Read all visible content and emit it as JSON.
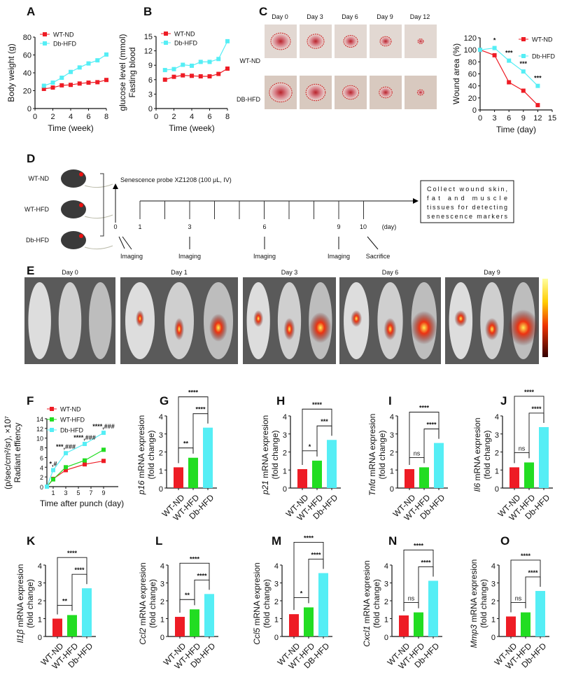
{
  "panel_letters": {
    "A": "A",
    "B": "B",
    "C": "C",
    "D": "D",
    "E": "E",
    "F": "F",
    "G": "G",
    "H": "H",
    "I": "I",
    "J": "J",
    "K": "K",
    "L": "L",
    "M": "M",
    "N": "N",
    "O": "O"
  },
  "colors": {
    "WT-ND": "#ee1c25",
    "WT-HFD": "#22dd22",
    "Db-HFD": "#55eef5"
  },
  "panel_c": {
    "days": [
      "Day 0",
      "Day 3",
      "Day 6",
      "Day 9",
      "Day 12"
    ],
    "rows": [
      "WT-ND",
      "DB-HFD"
    ]
  },
  "panel_d": {
    "groups": [
      "WT-ND",
      "WT-HFD",
      "Db-HFD"
    ],
    "probe": "Senescence probe XZ1208 (100 μL, IV)",
    "days": [
      "0",
      "1",
      "3",
      "6",
      "9",
      "10"
    ],
    "unit": "(day)",
    "events": [
      "Imaging",
      "Imaging",
      "Imaging",
      "Imaging",
      "Sacrifice"
    ],
    "box": [
      "Collect wound skin,",
      "fat and muscle",
      "tissues for detecting",
      "senescence markers"
    ]
  },
  "panel_e": {
    "days": [
      "Day 0",
      "Day 1",
      "Day 3",
      "Day 6",
      "Day 9"
    ]
  },
  "chart_data": [
    {
      "panel": "A",
      "type": "line",
      "xlabel": "Time (week)",
      "ylabel": "Body weight (g)",
      "xlim": [
        0,
        8
      ],
      "ylim": [
        0,
        80
      ],
      "xticks": [
        0,
        2,
        4,
        6,
        8
      ],
      "yticks": [
        0,
        20,
        40,
        60,
        80
      ],
      "legend": "top-left",
      "x": [
        1,
        2,
        3,
        4,
        5,
        6,
        7,
        8
      ],
      "series": [
        {
          "name": "WT-ND",
          "values": [
            22,
            23.5,
            26,
            26.5,
            28,
            29,
            29.5,
            32
          ]
        },
        {
          "name": "Db-HFD",
          "values": [
            25.5,
            29,
            34.5,
            41,
            46,
            50.5,
            54,
            60.5
          ]
        }
      ]
    },
    {
      "panel": "B",
      "type": "line",
      "xlabel": "Time (week)",
      "ylabel": [
        "Fasting blood",
        "glucose level (mmol)"
      ],
      "xlim": [
        0,
        8
      ],
      "ylim": [
        0,
        15
      ],
      "xticks": [
        0,
        2,
        4,
        6,
        8
      ],
      "yticks": [
        0,
        3,
        6,
        9,
        12,
        15
      ],
      "legend": "top-left",
      "x": [
        1,
        2,
        3,
        4,
        5,
        6,
        7,
        8
      ],
      "series": [
        {
          "name": "WT-ND",
          "values": [
            6,
            6.6,
            6.9,
            6.8,
            6.7,
            6.7,
            7.2,
            8.3
          ]
        },
        {
          "name": "Db-HFD",
          "values": [
            8,
            8.2,
            9.1,
            8.9,
            9.7,
            9.7,
            10.3,
            14
          ]
        }
      ]
    },
    {
      "panel": "C",
      "type": "line",
      "xlabel": "Time (day)",
      "ylabel": "Wound area (%)",
      "xlim": [
        0,
        15
      ],
      "ylim": [
        0,
        120
      ],
      "xticks": [
        0,
        3,
        6,
        9,
        12,
        15
      ],
      "yticks": [
        0,
        20,
        40,
        60,
        80,
        100,
        120
      ],
      "legend": "top-right",
      "x": [
        0,
        3,
        6,
        9,
        12
      ],
      "series": [
        {
          "name": "WT-ND",
          "values": [
            100,
            91,
            46,
            32,
            8
          ]
        },
        {
          "name": "Db-HFD",
          "values": [
            100,
            103,
            82,
            64,
            40
          ]
        }
      ],
      "annotations": [
        {
          "x": 3,
          "text": "*"
        },
        {
          "x": 6,
          "text": "***"
        },
        {
          "x": 9,
          "text": "***"
        },
        {
          "x": 12,
          "text": "***"
        }
      ]
    },
    {
      "panel": "F",
      "type": "line",
      "xlabel": "Time after punch (day)",
      "ylabel": [
        "Radiant effiency",
        "(p/sec/cm²/sr), ×10⁷"
      ],
      "xlim": [
        0,
        10
      ],
      "ylim": [
        0,
        14
      ],
      "xticks": [
        1,
        3,
        5,
        7,
        9
      ],
      "yticks": [
        0,
        2,
        4,
        6,
        8,
        10,
        12,
        14
      ],
      "legend": "top-left",
      "x": [
        0,
        1,
        3,
        6,
        9
      ],
      "series": [
        {
          "name": "WT-ND",
          "values": [
            0,
            1.6,
            3.4,
            4.6,
            5.3
          ]
        },
        {
          "name": "WT-HFD",
          "values": [
            0,
            1.5,
            4.0,
            5.4,
            7.6
          ]
        },
        {
          "name": "Db-HFD",
          "values": [
            0,
            3.4,
            6.9,
            8.8,
            11.1
          ]
        }
      ],
      "annotations": [
        {
          "x": 1,
          "text": "*,#"
        },
        {
          "x": 3,
          "text": "***,###"
        },
        {
          "x": 6,
          "text": "****,###"
        },
        {
          "x": 9,
          "text": "****,###"
        }
      ]
    },
    {
      "panel": "G",
      "type": "bar",
      "gene": "p16",
      "ylabel": " mRNA expresion",
      "ylabel2": "(fold change)",
      "categories": [
        "WT-ND",
        "WT-HFD",
        "Db-HFD"
      ],
      "values": [
        1.15,
        1.68,
        3.35
      ],
      "ylim": [
        0,
        4
      ],
      "yticks": [
        0,
        1,
        2,
        3,
        4
      ],
      "sig": [
        "**",
        "****",
        "****"
      ]
    },
    {
      "panel": "H",
      "type": "bar",
      "gene": "p21",
      "ylabel": " mRNA expresion",
      "ylabel2": "(fold change)",
      "categories": [
        "WT-ND",
        "WT-HFD",
        "Db-HFD"
      ],
      "values": [
        1.05,
        1.52,
        2.67
      ],
      "ylim": [
        0,
        4
      ],
      "yticks": [
        0,
        1,
        2,
        3,
        4
      ],
      "sig": [
        "*",
        "****",
        "***"
      ]
    },
    {
      "panel": "I",
      "type": "bar",
      "gene": "Tnfα",
      "ylabel": " mRNA expresion",
      "ylabel2": "(fold change)",
      "categories": [
        "WT-ND",
        "WT-HFD",
        "Db-HFD"
      ],
      "values": [
        1.05,
        1.15,
        2.5
      ],
      "ylim": [
        0,
        4
      ],
      "yticks": [
        0,
        1,
        2,
        3,
        4
      ],
      "sig": [
        "ns",
        "****",
        "****"
      ]
    },
    {
      "panel": "J",
      "type": "bar",
      "gene": "Il6",
      "ylabel": " mRNA expresion",
      "ylabel2": "(fold change)",
      "categories": [
        "WT-ND",
        "WT-HFD",
        "Db-HFD"
      ],
      "values": [
        1.15,
        1.42,
        3.38
      ],
      "ylim": [
        0,
        4
      ],
      "yticks": [
        0,
        1,
        2,
        3,
        4
      ],
      "sig": [
        "ns",
        "****",
        "****"
      ]
    },
    {
      "panel": "K",
      "type": "bar",
      "gene": "Il1β",
      "ylabel": " mRNA expresion",
      "ylabel2": "(fold change)",
      "categories": [
        "WT-ND",
        "WT-HFD",
        "Db-HFD"
      ],
      "values": [
        1.0,
        1.2,
        2.7
      ],
      "ylim": [
        0,
        4
      ],
      "yticks": [
        0,
        1,
        2,
        3,
        4
      ],
      "sig": [
        "**",
        "****",
        "****"
      ]
    },
    {
      "panel": "L",
      "type": "bar",
      "gene": "Ccl2",
      "ylabel": " mRNA expresion",
      "ylabel2": "(fold change)",
      "categories": [
        "WT-ND",
        "WT-HFD",
        "Db-HFD"
      ],
      "values": [
        1.1,
        1.52,
        2.38
      ],
      "ylim": [
        0,
        4
      ],
      "yticks": [
        0,
        1,
        2,
        3,
        4
      ],
      "sig": [
        "**",
        "****",
        "****"
      ]
    },
    {
      "panel": "M",
      "type": "bar",
      "gene": "Ccl5",
      "ylabel": " mRNA expresion",
      "ylabel2": "(fold change)",
      "categories": [
        "WT-ND",
        "WT-HFD",
        "DB-HFD"
      ],
      "values": [
        1.25,
        1.63,
        3.55
      ],
      "ylim": [
        0,
        4
      ],
      "yticks": [
        0,
        1,
        2,
        3,
        4
      ],
      "sig": [
        "*",
        "****",
        "****"
      ]
    },
    {
      "panel": "N",
      "type": "bar",
      "gene": "Cxcl1",
      "ylabel": " mRNA expresion",
      "ylabel2": "(fold change)",
      "categories": [
        "WT-ND",
        "WT-HFD",
        "Db-HFD"
      ],
      "values": [
        1.18,
        1.35,
        3.12
      ],
      "ylim": [
        0,
        4
      ],
      "yticks": [
        0,
        1,
        2,
        3,
        4
      ],
      "sig": [
        "ns",
        "****",
        "****"
      ]
    },
    {
      "panel": "O",
      "type": "bar",
      "gene": "Mmp3",
      "ylabel": " mRNA expresion",
      "ylabel2": "(fold change)",
      "categories": [
        "WT-ND",
        "WT-HFD",
        "Db-HFD"
      ],
      "values": [
        1.12,
        1.35,
        2.55
      ],
      "ylim": [
        0,
        4
      ],
      "yticks": [
        0,
        1,
        2,
        3,
        4
      ],
      "sig": [
        "ns",
        "****",
        "****"
      ]
    }
  ]
}
